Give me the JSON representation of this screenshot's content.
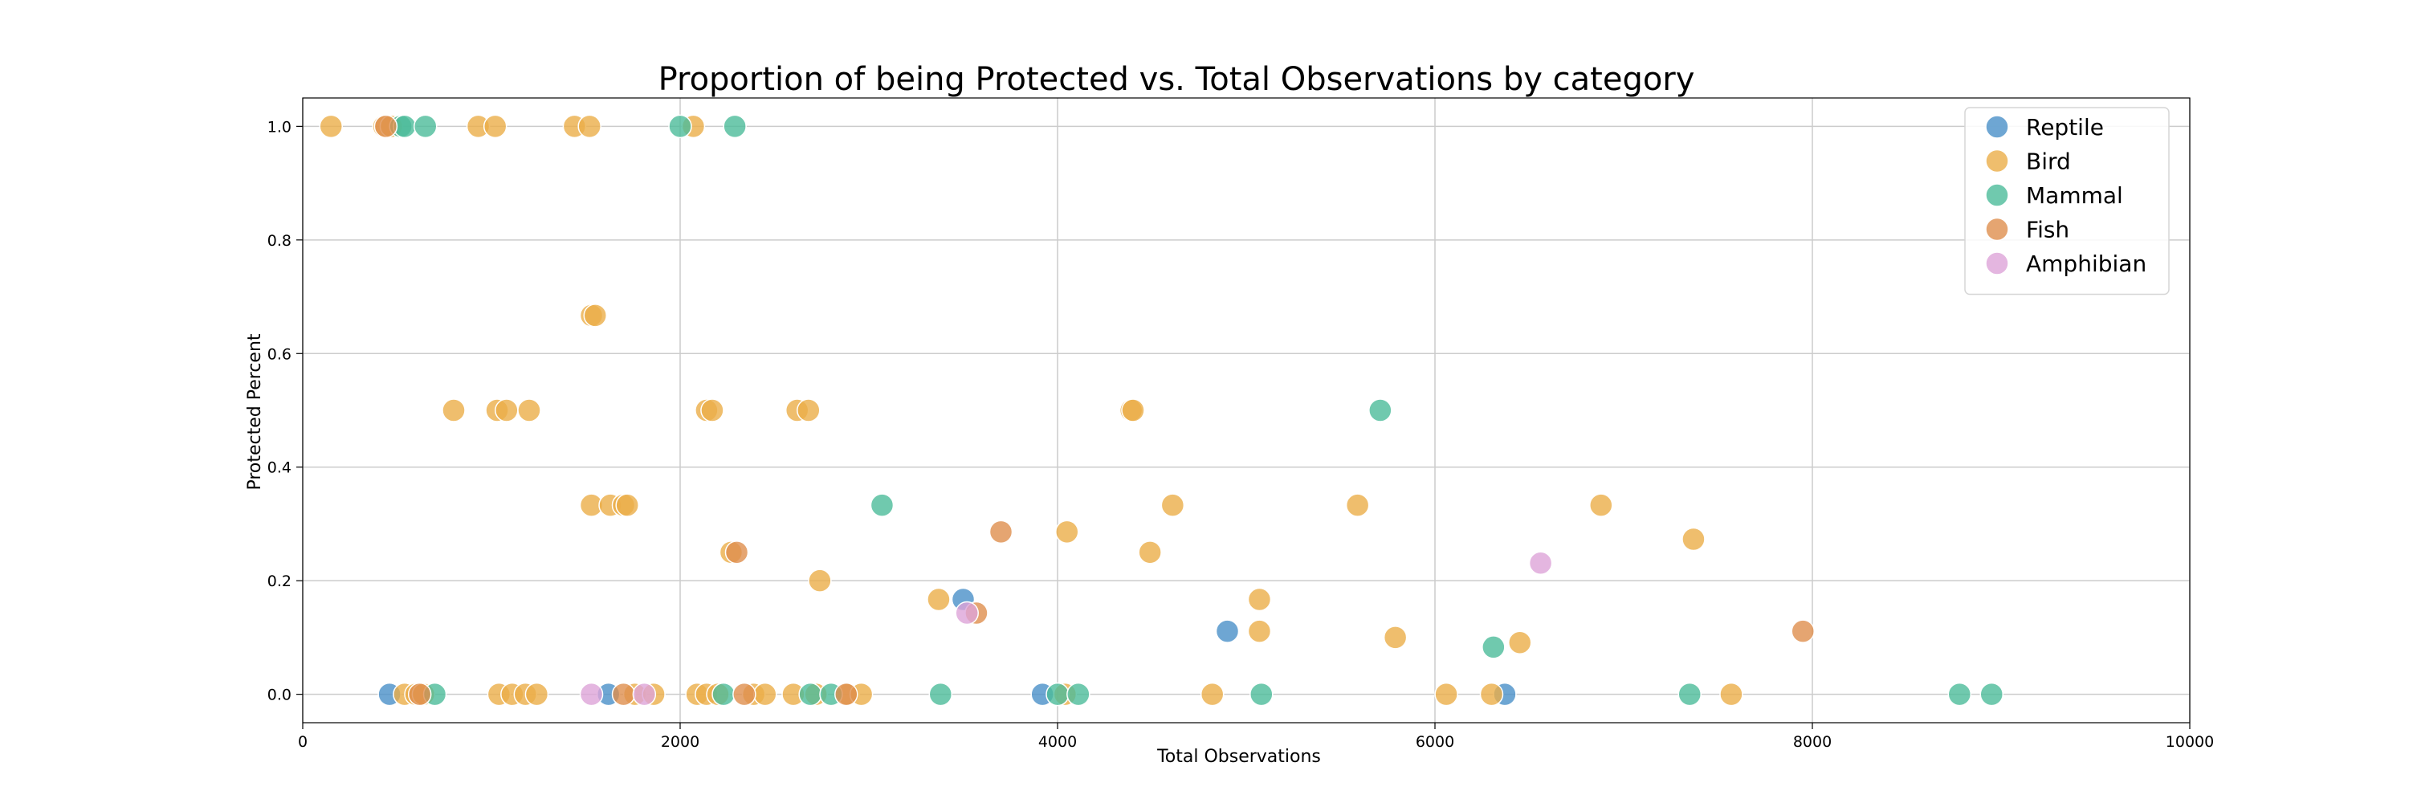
{
  "chart_data": {
    "type": "scatter",
    "title": "Proportion of being Protected vs. Total Observations by category",
    "xlabel": "Total Observations",
    "ylabel": "Protected Percent",
    "xlim": [
      0,
      10000
    ],
    "ylim": [
      -0.05,
      1.05
    ],
    "xticks": [
      0,
      2000,
      4000,
      6000,
      8000,
      10000
    ],
    "xtick_labels": [
      "0",
      "2000",
      "4000",
      "6000",
      "8000",
      "10000"
    ],
    "yticks": [
      0.0,
      0.2,
      0.4,
      0.6,
      0.8,
      1.0
    ],
    "ytick_labels": [
      "0.0",
      "0.2",
      "0.4",
      "0.6",
      "0.8",
      "1.0"
    ],
    "grid": true,
    "legend_position": "top-right",
    "colors": {
      "Reptile": "#4a90c8",
      "Bird": "#ebae48",
      "Mammal": "#4cbc9a",
      "Fish": "#df8f4e",
      "Amphibian": "#dda4d8"
    },
    "series": [
      {
        "name": "Reptile",
        "points": [
          [
            460,
            0.0
          ],
          [
            1620,
            0.0
          ],
          [
            3500,
            0.167
          ],
          [
            3920,
            0.0
          ],
          [
            4900,
            0.111
          ],
          [
            6370,
            0.0
          ]
        ]
      },
      {
        "name": "Bird",
        "points": [
          [
            150,
            1.0
          ],
          [
            430,
            1.0
          ],
          [
            470,
            1.0
          ],
          [
            930,
            1.0
          ],
          [
            1020,
            1.0
          ],
          [
            1440,
            1.0
          ],
          [
            1520,
            1.0
          ],
          [
            2070,
            1.0
          ],
          [
            1530,
            0.667
          ],
          [
            1550,
            0.667
          ],
          [
            800,
            0.5
          ],
          [
            1030,
            0.5
          ],
          [
            1080,
            0.5
          ],
          [
            1200,
            0.5
          ],
          [
            2140,
            0.5
          ],
          [
            2170,
            0.5
          ],
          [
            2620,
            0.5
          ],
          [
            2680,
            0.5
          ],
          [
            4390,
            0.5
          ],
          [
            4400,
            0.5
          ],
          [
            1530,
            0.333
          ],
          [
            1630,
            0.333
          ],
          [
            1700,
            0.333
          ],
          [
            1720,
            0.333
          ],
          [
            4610,
            0.333
          ],
          [
            5590,
            0.333
          ],
          [
            6880,
            0.333
          ],
          [
            2270,
            0.25
          ],
          [
            4490,
            0.25
          ],
          [
            4050,
            0.286
          ],
          [
            7370,
            0.273
          ],
          [
            2740,
            0.2
          ],
          [
            3370,
            0.167
          ],
          [
            5070,
            0.167
          ],
          [
            5070,
            0.111
          ],
          [
            6450,
            0.091
          ],
          [
            5790,
            0.1
          ],
          [
            540,
            0.0
          ],
          [
            600,
            0.0
          ],
          [
            640,
            0.0
          ],
          [
            1040,
            0.0
          ],
          [
            1110,
            0.0
          ],
          [
            1180,
            0.0
          ],
          [
            1240,
            0.0
          ],
          [
            1760,
            0.0
          ],
          [
            1860,
            0.0
          ],
          [
            2090,
            0.0
          ],
          [
            2140,
            0.0
          ],
          [
            2200,
            0.0
          ],
          [
            2390,
            0.0
          ],
          [
            2450,
            0.0
          ],
          [
            2600,
            0.0
          ],
          [
            2720,
            0.0
          ],
          [
            2890,
            0.0
          ],
          [
            2960,
            0.0
          ],
          [
            4040,
            0.0
          ],
          [
            4820,
            0.0
          ],
          [
            6060,
            0.0
          ],
          [
            6300,
            0.0
          ],
          [
            7570,
            0.0
          ]
        ]
      },
      {
        "name": "Mammal",
        "points": [
          [
            520,
            1.0
          ],
          [
            540,
            1.0
          ],
          [
            650,
            1.0
          ],
          [
            2000,
            1.0
          ],
          [
            2290,
            1.0
          ],
          [
            5710,
            0.5
          ],
          [
            3070,
            0.333
          ],
          [
            6310,
            0.083
          ],
          [
            700,
            0.0
          ],
          [
            2230,
            0.0
          ],
          [
            2690,
            0.0
          ],
          [
            2800,
            0.0
          ],
          [
            3380,
            0.0
          ],
          [
            4000,
            0.0
          ],
          [
            4110,
            0.0
          ],
          [
            5080,
            0.0
          ],
          [
            7350,
            0.0
          ],
          [
            8780,
            0.0
          ],
          [
            8950,
            0.0
          ]
        ]
      },
      {
        "name": "Fish",
        "points": [
          [
            440,
            1.0
          ],
          [
            2300,
            0.25
          ],
          [
            3700,
            0.286
          ],
          [
            3570,
            0.143
          ],
          [
            7950,
            0.111
          ],
          [
            620,
            0.0
          ],
          [
            1700,
            0.0
          ],
          [
            2340,
            0.0
          ],
          [
            2880,
            0.0
          ]
        ]
      },
      {
        "name": "Amphibian",
        "points": [
          [
            6560,
            0.231
          ],
          [
            3520,
            0.143
          ],
          [
            1530,
            0.0
          ],
          [
            1810,
            0.0
          ]
        ]
      }
    ]
  }
}
